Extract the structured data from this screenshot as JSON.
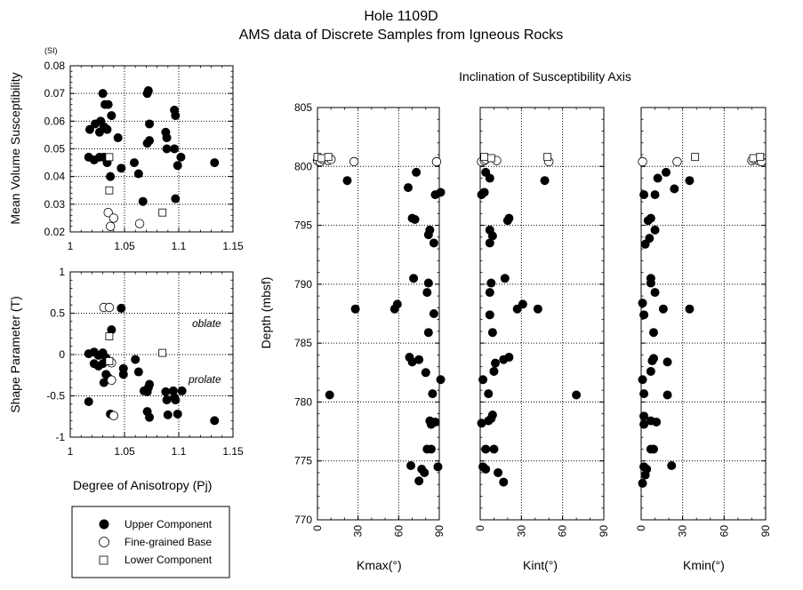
{
  "header": {
    "title": "Hole 1109D",
    "subtitle": "AMS data of Discrete Samples from Igneous Rocks"
  },
  "legend": {
    "items": [
      {
        "label": "Upper Component",
        "marker": "filled-circle"
      },
      {
        "label": "Fine-grained Base",
        "marker": "open-circle"
      },
      {
        "label": "Lower Component",
        "marker": "open-square"
      }
    ]
  },
  "chart_data": [
    {
      "id": "susceptibility",
      "type": "scatter",
      "xlabel": "",
      "ylabel": "Mean Volume Susceptibility",
      "unit_label": "(SI)",
      "xlim": [
        1,
        1.15
      ],
      "ylim": [
        0.02,
        0.08
      ],
      "xticks": [
        "1",
        "1.05",
        "1.1",
        "1.15"
      ],
      "yticks": [
        "0.02",
        "0.03",
        "0.04",
        "0.05",
        "0.06",
        "0.07",
        "0.08"
      ],
      "series": [
        {
          "name": "Upper Component",
          "points": [
            [
              1.018,
              0.057
            ],
            [
              1.023,
              0.059
            ],
            [
              1.028,
              0.06
            ],
            [
              1.03,
              0.07
            ],
            [
              1.032,
              0.066
            ],
            [
              1.035,
              0.066
            ],
            [
              1.027,
              0.056
            ],
            [
              1.031,
              0.058
            ],
            [
              1.034,
              0.057
            ],
            [
              1.038,
              0.062
            ],
            [
              1.017,
              0.047
            ],
            [
              1.022,
              0.046
            ],
            [
              1.027,
              0.047
            ],
            [
              1.031,
              0.047
            ],
            [
              1.034,
              0.045
            ],
            [
              1.037,
              0.04
            ],
            [
              1.044,
              0.054
            ],
            [
              1.047,
              0.043
            ],
            [
              1.059,
              0.045
            ],
            [
              1.063,
              0.041
            ],
            [
              1.067,
              0.031
            ],
            [
              1.071,
              0.07
            ],
            [
              1.072,
              0.071
            ],
            [
              1.073,
              0.059
            ],
            [
              1.071,
              0.052
            ],
            [
              1.073,
              0.053
            ],
            [
              1.088,
              0.056
            ],
            [
              1.089,
              0.054
            ],
            [
              1.089,
              0.05
            ],
            [
              1.096,
              0.064
            ],
            [
              1.097,
              0.062
            ],
            [
              1.096,
              0.05
            ],
            [
              1.099,
              0.044
            ],
            [
              1.102,
              0.047
            ],
            [
              1.097,
              0.032
            ],
            [
              1.133,
              0.045
            ]
          ]
        },
        {
          "name": "Fine-grained Base",
          "points": [
            [
              1.035,
              0.027
            ],
            [
              1.037,
              0.022
            ],
            [
              1.04,
              0.025
            ],
            [
              1.064,
              0.023
            ]
          ]
        },
        {
          "name": "Lower Component",
          "points": [
            [
              1.036,
              0.047
            ],
            [
              1.036,
              0.035
            ],
            [
              1.085,
              0.027
            ]
          ]
        }
      ]
    },
    {
      "id": "shape",
      "type": "scatter",
      "xlabel": "Degree of Anisotropy (Pj)",
      "ylabel": "Shape Parameter (T)",
      "xlim": [
        1,
        1.15
      ],
      "ylim": [
        -1,
        1
      ],
      "xticks": [
        "1",
        "1.05",
        "1.1",
        "1.15"
      ],
      "yticks": [
        "-1",
        "-0.5",
        "0",
        "0.5",
        "1"
      ],
      "annotations": [
        "oblate",
        "prolate"
      ],
      "series": [
        {
          "name": "Upper Component",
          "points": [
            [
              1.047,
              0.56
            ],
            [
              1.038,
              0.3
            ],
            [
              1.017,
              0.01
            ],
            [
              1.022,
              0.03
            ],
            [
              1.026,
              -0.01
            ],
            [
              1.03,
              0.02
            ],
            [
              1.033,
              -0.04
            ],
            [
              1.022,
              -0.11
            ],
            [
              1.026,
              -0.14
            ],
            [
              1.03,
              -0.11
            ],
            [
              1.033,
              -0.24
            ],
            [
              1.035,
              -0.28
            ],
            [
              1.031,
              -0.34
            ],
            [
              1.049,
              -0.17
            ],
            [
              1.049,
              -0.24
            ],
            [
              1.06,
              -0.06
            ],
            [
              1.063,
              -0.21
            ],
            [
              1.068,
              -0.44
            ],
            [
              1.071,
              -0.45
            ],
            [
              1.073,
              -0.36
            ],
            [
              1.072,
              -0.4
            ],
            [
              1.071,
              -0.69
            ],
            [
              1.073,
              -0.76
            ],
            [
              1.088,
              -0.45
            ],
            [
              1.089,
              -0.55
            ],
            [
              1.09,
              -0.73
            ],
            [
              1.095,
              -0.44
            ],
            [
              1.096,
              -0.52
            ],
            [
              1.097,
              -0.55
            ],
            [
              1.099,
              -0.72
            ],
            [
              1.103,
              -0.44
            ],
            [
              1.017,
              -0.57
            ],
            [
              1.037,
              -0.72
            ],
            [
              1.133,
              -0.8
            ]
          ]
        },
        {
          "name": "Fine-grained Base",
          "points": [
            [
              1.031,
              0.57
            ],
            [
              1.036,
              0.57
            ],
            [
              1.038,
              -0.31
            ],
            [
              1.038,
              -0.1
            ],
            [
              1.04,
              -0.74
            ]
          ]
        },
        {
          "name": "Lower Component",
          "points": [
            [
              1.036,
              0.22
            ],
            [
              1.036,
              -0.08
            ],
            [
              1.085,
              0.02
            ]
          ]
        }
      ]
    },
    {
      "id": "kmax",
      "type": "scatter",
      "title": "Inclination of Susceptibility Axis",
      "xlabel": "Kmax(°)",
      "ylabel": "Depth (mbsf)",
      "xlim": [
        0,
        90
      ],
      "ylim": [
        805,
        770
      ],
      "xticks": [
        "0",
        "30",
        "60",
        "90"
      ],
      "yticks": [
        "770",
        "775",
        "780",
        "785",
        "790",
        "795",
        "800",
        "805"
      ],
      "series": [
        {
          "name": "Upper Component",
          "points": [
            [
              9,
              780.6
            ],
            [
              22,
              798.8
            ],
            [
              28,
              787.9
            ],
            [
              57,
              787.9
            ],
            [
              59,
              788.3
            ],
            [
              67,
              798.2
            ],
            [
              68,
              783.8
            ],
            [
              70,
              783.4
            ],
            [
              71,
              790.5
            ],
            [
              72,
              795.5
            ],
            [
              73,
              799.5
            ],
            [
              75,
              783.6
            ],
            [
              75,
              773.3
            ],
            [
              77,
              774.3
            ],
            [
              79,
              774.0
            ],
            [
              80,
              782.5
            ],
            [
              81,
              776.0
            ],
            [
              81,
              789.3
            ],
            [
              82,
              785.9
            ],
            [
              82,
              790.1
            ],
            [
              82,
              794.2
            ],
            [
              83,
              794.6
            ],
            [
              83,
              778.4
            ],
            [
              84,
              778.1
            ],
            [
              84,
              776.0
            ],
            [
              85,
              780.7
            ],
            [
              86,
              787.5
            ],
            [
              86,
              793.5
            ],
            [
              87,
              797.6
            ],
            [
              87,
              778.3
            ],
            [
              89,
              774.5
            ],
            [
              91,
              797.8
            ],
            [
              91,
              781.9
            ],
            [
              69,
              774.6
            ],
            [
              70,
              795.6
            ]
          ]
        },
        {
          "name": "Fine-grained Base",
          "points": [
            [
              0,
              800.5
            ],
            [
              2,
              800.4
            ],
            [
              4,
              800.6
            ],
            [
              8,
              800.5
            ],
            [
              10,
              800.6
            ],
            [
              27,
              800.4
            ],
            [
              88,
              800.4
            ]
          ]
        },
        {
          "name": "Lower Component",
          "points": [
            [
              0,
              800.8
            ],
            [
              3,
              800.7
            ],
            [
              8,
              800.8
            ]
          ]
        }
      ]
    },
    {
      "id": "kint",
      "type": "scatter",
      "xlabel": "Kint(°)",
      "ylabel": "",
      "xlim": [
        0,
        90
      ],
      "ylim": [
        805,
        770
      ],
      "xticks": [
        "0",
        "30",
        "60",
        "90"
      ],
      "yticks": [],
      "series": [
        {
          "name": "Upper Component",
          "points": [
            [
              17,
              773.2
            ],
            [
              13,
              774.0
            ],
            [
              2,
              774.5
            ],
            [
              4,
              774.3
            ],
            [
              4,
              776.0
            ],
            [
              10,
              776.0
            ],
            [
              1,
              778.2
            ],
            [
              6,
              778.4
            ],
            [
              8,
              778.6
            ],
            [
              9,
              778.9
            ],
            [
              6,
              780.7
            ],
            [
              70,
              780.6
            ],
            [
              2,
              781.9
            ],
            [
              10,
              782.6
            ],
            [
              11,
              783.3
            ],
            [
              17,
              783.6
            ],
            [
              21,
              783.8
            ],
            [
              9,
              785.9
            ],
            [
              7,
              787.4
            ],
            [
              27,
              787.9
            ],
            [
              42,
              787.9
            ],
            [
              31,
              788.3
            ],
            [
              7,
              789.3
            ],
            [
              8,
              790.1
            ],
            [
              18,
              790.5
            ],
            [
              7,
              793.5
            ],
            [
              9,
              794.1
            ],
            [
              7,
              794.6
            ],
            [
              20,
              795.4
            ],
            [
              21,
              795.6
            ],
            [
              1,
              797.6
            ],
            [
              3,
              797.8
            ],
            [
              47,
              798.8
            ],
            [
              7,
              799.0
            ],
            [
              4,
              799.5
            ]
          ]
        },
        {
          "name": "Fine-grained Base",
          "points": [
            [
              1,
              800.4
            ],
            [
              3,
              800.5
            ],
            [
              4,
              800.6
            ],
            [
              12,
              800.5
            ],
            [
              50,
              800.4
            ]
          ]
        },
        {
          "name": "Lower Component",
          "points": [
            [
              3,
              800.8
            ],
            [
              8,
              800.7
            ],
            [
              49,
              800.8
            ]
          ]
        }
      ]
    },
    {
      "id": "kmin",
      "type": "scatter",
      "xlabel": "Kmin(°)",
      "ylabel": "",
      "xlim": [
        0,
        90
      ],
      "ylim": [
        805,
        770
      ],
      "xticks": [
        "0",
        "30",
        "60",
        "90"
      ],
      "yticks": [],
      "series": [
        {
          "name": "Upper Component",
          "points": [
            [
              1,
              773.1
            ],
            [
              3,
              773.8
            ],
            [
              4,
              774.3
            ],
            [
              22,
              774.6
            ],
            [
              2,
              774.5
            ],
            [
              7,
              776.0
            ],
            [
              9,
              776.0
            ],
            [
              2,
              778.1
            ],
            [
              7,
              778.4
            ],
            [
              11,
              778.3
            ],
            [
              2,
              778.8
            ],
            [
              19,
              780.6
            ],
            [
              2,
              780.7
            ],
            [
              1,
              781.9
            ],
            [
              7,
              782.6
            ],
            [
              8,
              783.5
            ],
            [
              9,
              783.7
            ],
            [
              19,
              783.4
            ],
            [
              9,
              785.9
            ],
            [
              2,
              787.4
            ],
            [
              16,
              787.9
            ],
            [
              35,
              787.9
            ],
            [
              1,
              788.4
            ],
            [
              10,
              789.3
            ],
            [
              7,
              790.1
            ],
            [
              7,
              790.5
            ],
            [
              3,
              793.4
            ],
            [
              6,
              793.9
            ],
            [
              10,
              794.6
            ],
            [
              5,
              795.4
            ],
            [
              7,
              795.6
            ],
            [
              2,
              797.6
            ],
            [
              10,
              797.6
            ],
            [
              24,
              798.1
            ],
            [
              35,
              798.8
            ],
            [
              12,
              799.0
            ],
            [
              18,
              799.5
            ]
          ]
        },
        {
          "name": "Fine-grained Base",
          "points": [
            [
              1,
              800.4
            ],
            [
              26,
              800.4
            ],
            [
              80,
              800.5
            ],
            [
              82,
              800.6
            ],
            [
              85,
              800.5
            ],
            [
              87,
              800.4
            ]
          ]
        },
        {
          "name": "Lower Component",
          "points": [
            [
              39,
              800.8
            ],
            [
              81,
              800.7
            ],
            [
              86,
              800.8
            ]
          ]
        }
      ]
    }
  ]
}
